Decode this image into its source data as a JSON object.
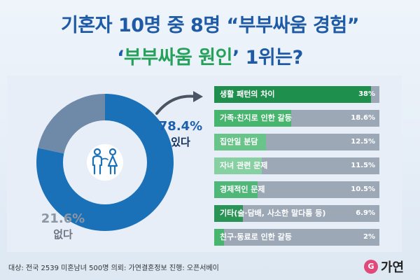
{
  "title": {
    "line1": "기혼자 10명 중 8명 “부부싸움 경험”",
    "line2_prefix": "‘",
    "line2_highlight": "부부싸움 원인",
    "line2_suffix": "’ 1위는?"
  },
  "chart_data": [
    {
      "type": "pie",
      "slices": [
        {
          "label": "있다",
          "value": 78.4,
          "text": "78.4%",
          "color": "#1b71b8"
        },
        {
          "label": "없다",
          "value": 21.6,
          "text": "21.6%",
          "color": "#6e8aa8"
        }
      ]
    },
    {
      "type": "bar",
      "categories": [
        "생활 패턴의 차이",
        "가족·친지로 인한 갈등",
        "집안일 분담",
        "자녀 관련 문제",
        "경제적인 문제",
        "기타(술·담배, 사소한 말다툼 등)",
        "친구·동료로 인한 갈등"
      ],
      "values": [
        38,
        18.6,
        12.5,
        11.5,
        10.5,
        6.9,
        2
      ],
      "value_labels": [
        "38%",
        "18.6%",
        "12.5%",
        "11.5%",
        "10.5%",
        "6.9%",
        "2%"
      ],
      "colors": [
        "#1f8f4e",
        "#46b56d",
        "#69c48a",
        "#86d0a1",
        "#4fb878",
        "#2a9457",
        "#46b56d"
      ]
    }
  ],
  "footer": "대상: 전국 2539 미혼남녀 500명   의뢰: 가연결혼정보   진행: 오픈서베이",
  "logo": {
    "mark": "G",
    "text": "가연"
  },
  "icons": {
    "couple": "couple-icon",
    "arrow": "curved-arrow-icon"
  }
}
